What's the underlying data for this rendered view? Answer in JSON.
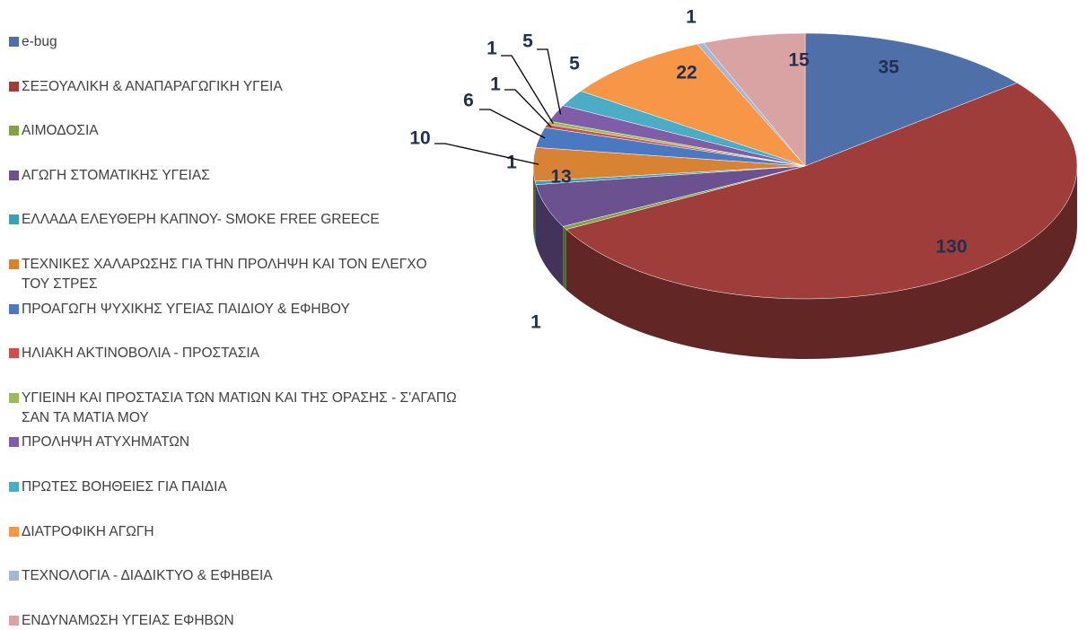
{
  "chart_data": {
    "type": "pie3d",
    "categories": [
      "e-bug",
      "ΣΕΞΟΥΑΛΙΚΗ & ΑΝΑΠΑΡΑΓΩΓΙΚΗ ΥΓΕΙΑ",
      "ΑΙΜΟΔΟΣΙΑ",
      "ΑΓΩΓΗ ΣΤΟΜΑΤΙΚΗΣ ΥΓΕΙΑΣ",
      "ΕΛΛΑΔΑ ΕΛΕΥΘΕΡΗ ΚΑΠΝΟΥ- SMOKE FREE GREECE",
      "ΤΕΧΝΙΚΕΣ ΧΑΛΑΡΩΣΗΣ ΓΙΑ ΤΗΝ ΠΡΟΛΗΨΗ ΚΑΙ ΤΟΝ ΕΛΕΓΧΟ ΤΟΥ ΣΤΡΕΣ",
      "ΠΡΟΑΓΩΓΗ ΨΥΧΙΚΗΣ ΥΓΕΙΑΣ ΠΑΙΔΙΟΥ & ΕΦΗΒΟΥ",
      "ΗΛΙΑΚΗ ΑΚΤΙΝΟΒΟΛΙΑ - ΠΡΟΣΤΑΣΙΑ",
      "ΥΓΙΕΙΝΗ ΚΑΙ ΠΡΟΣΤΑΣΙΑ ΤΩΝ ΜΑΤΙΩΝ ΚΑΙ ΤΗΣ ΟΡΑΣΗΣ - Σ'ΑΓΑΠΩ ΣΑΝ ΤΑ ΜΑΤΙΑ ΜΟΥ",
      "ΠΡΟΛΗΨΗ ΑΤΥΧΗΜΑΤΩΝ",
      "ΠΡΩΤΕΣ ΒΟΗΘΕΙΕΣ ΓΙΑ ΠΑΙΔΙΑ",
      "ΔΙΑΤΡΟΦΙΚΗ ΑΓΩΓΗ",
      "ΤΕΧΝΟΛΟΓΙΑ - ΔΙΑΔΙΚΤΥΟ & ΕΦΗΒΕΙΑ",
      "ΕΝΔΥΝΑΜΩΣΗ ΥΓΕΙΑΣ ΕΦΗΒΩΝ"
    ],
    "values": [
      35,
      130,
      1,
      13,
      1,
      10,
      6,
      1,
      1,
      5,
      5,
      22,
      1,
      15
    ],
    "colors": [
      "#4f6fa8",
      "#9e3d3a",
      "#86a04a",
      "#6c5191",
      "#3b9fb8",
      "#d88234",
      "#4a79c2",
      "#c9504c",
      "#9bbb59",
      "#7e5ea8",
      "#4bacc6",
      "#f79646",
      "#a5b6d6",
      "#d9a3a3"
    ],
    "legend": "left"
  }
}
